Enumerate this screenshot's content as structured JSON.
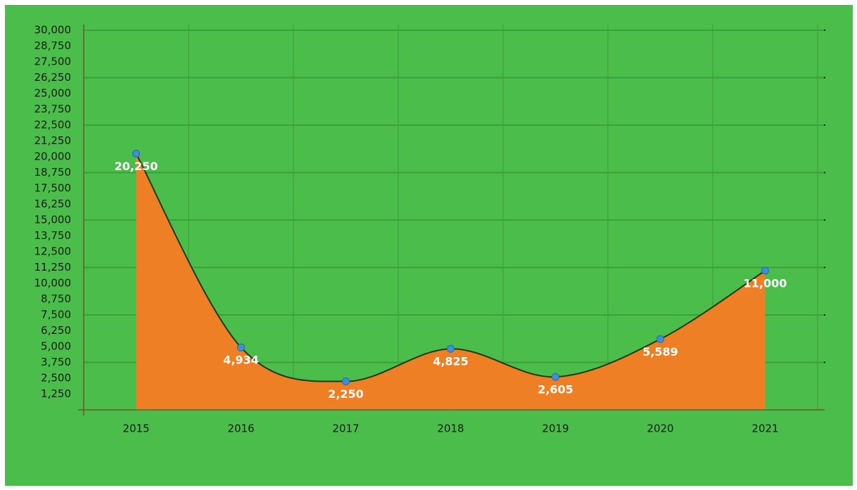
{
  "chart_data": {
    "type": "area",
    "categories": [
      "2015",
      "2016",
      "2017",
      "2018",
      "2019",
      "2020",
      "2021"
    ],
    "values": [
      20250,
      4934,
      2250,
      4825,
      2605,
      5589,
      11000
    ],
    "value_labels": [
      "20,250",
      "4,934",
      "2,250",
      "4,825",
      "2,605",
      "5,589",
      "11,000"
    ],
    "color": "#ee7f24",
    "line_color": "#1d3b1d",
    "marker_color": "#3b8fdb",
    "background": "#4bbd4b",
    "ylim": [
      0,
      30000
    ],
    "yticks": [
      {
        "value": 1250,
        "label": "1,250"
      },
      {
        "value": 2500,
        "label": "2,500"
      },
      {
        "value": 3750,
        "label": "3,750"
      },
      {
        "value": 5000,
        "label": "5,000"
      },
      {
        "value": 6250,
        "label": "6,250"
      },
      {
        "value": 7500,
        "label": "7,500"
      },
      {
        "value": 8750,
        "label": "8,750"
      },
      {
        "value": 10000,
        "label": "10,000"
      },
      {
        "value": 11250,
        "label": "11,250"
      },
      {
        "value": 12500,
        "label": "12,500"
      },
      {
        "value": 13750,
        "label": "13,750"
      },
      {
        "value": 15000,
        "label": "15,000"
      },
      {
        "value": 16250,
        "label": "16,250"
      },
      {
        "value": 17500,
        "label": "17,500"
      },
      {
        "value": 18750,
        "label": "18,750"
      },
      {
        "value": 20000,
        "label": "20,000"
      },
      {
        "value": 21250,
        "label": "21,250"
      },
      {
        "value": 22500,
        "label": "22,500"
      },
      {
        "value": 23750,
        "label": "23,750"
      },
      {
        "value": 25000,
        "label": "25,000"
      },
      {
        "value": 26250,
        "label": "26,250"
      },
      {
        "value": 27500,
        "label": "27,500"
      },
      {
        "value": 28750,
        "label": "28,750"
      },
      {
        "value": 30000,
        "label": "30,000"
      }
    ],
    "grid": true
  }
}
